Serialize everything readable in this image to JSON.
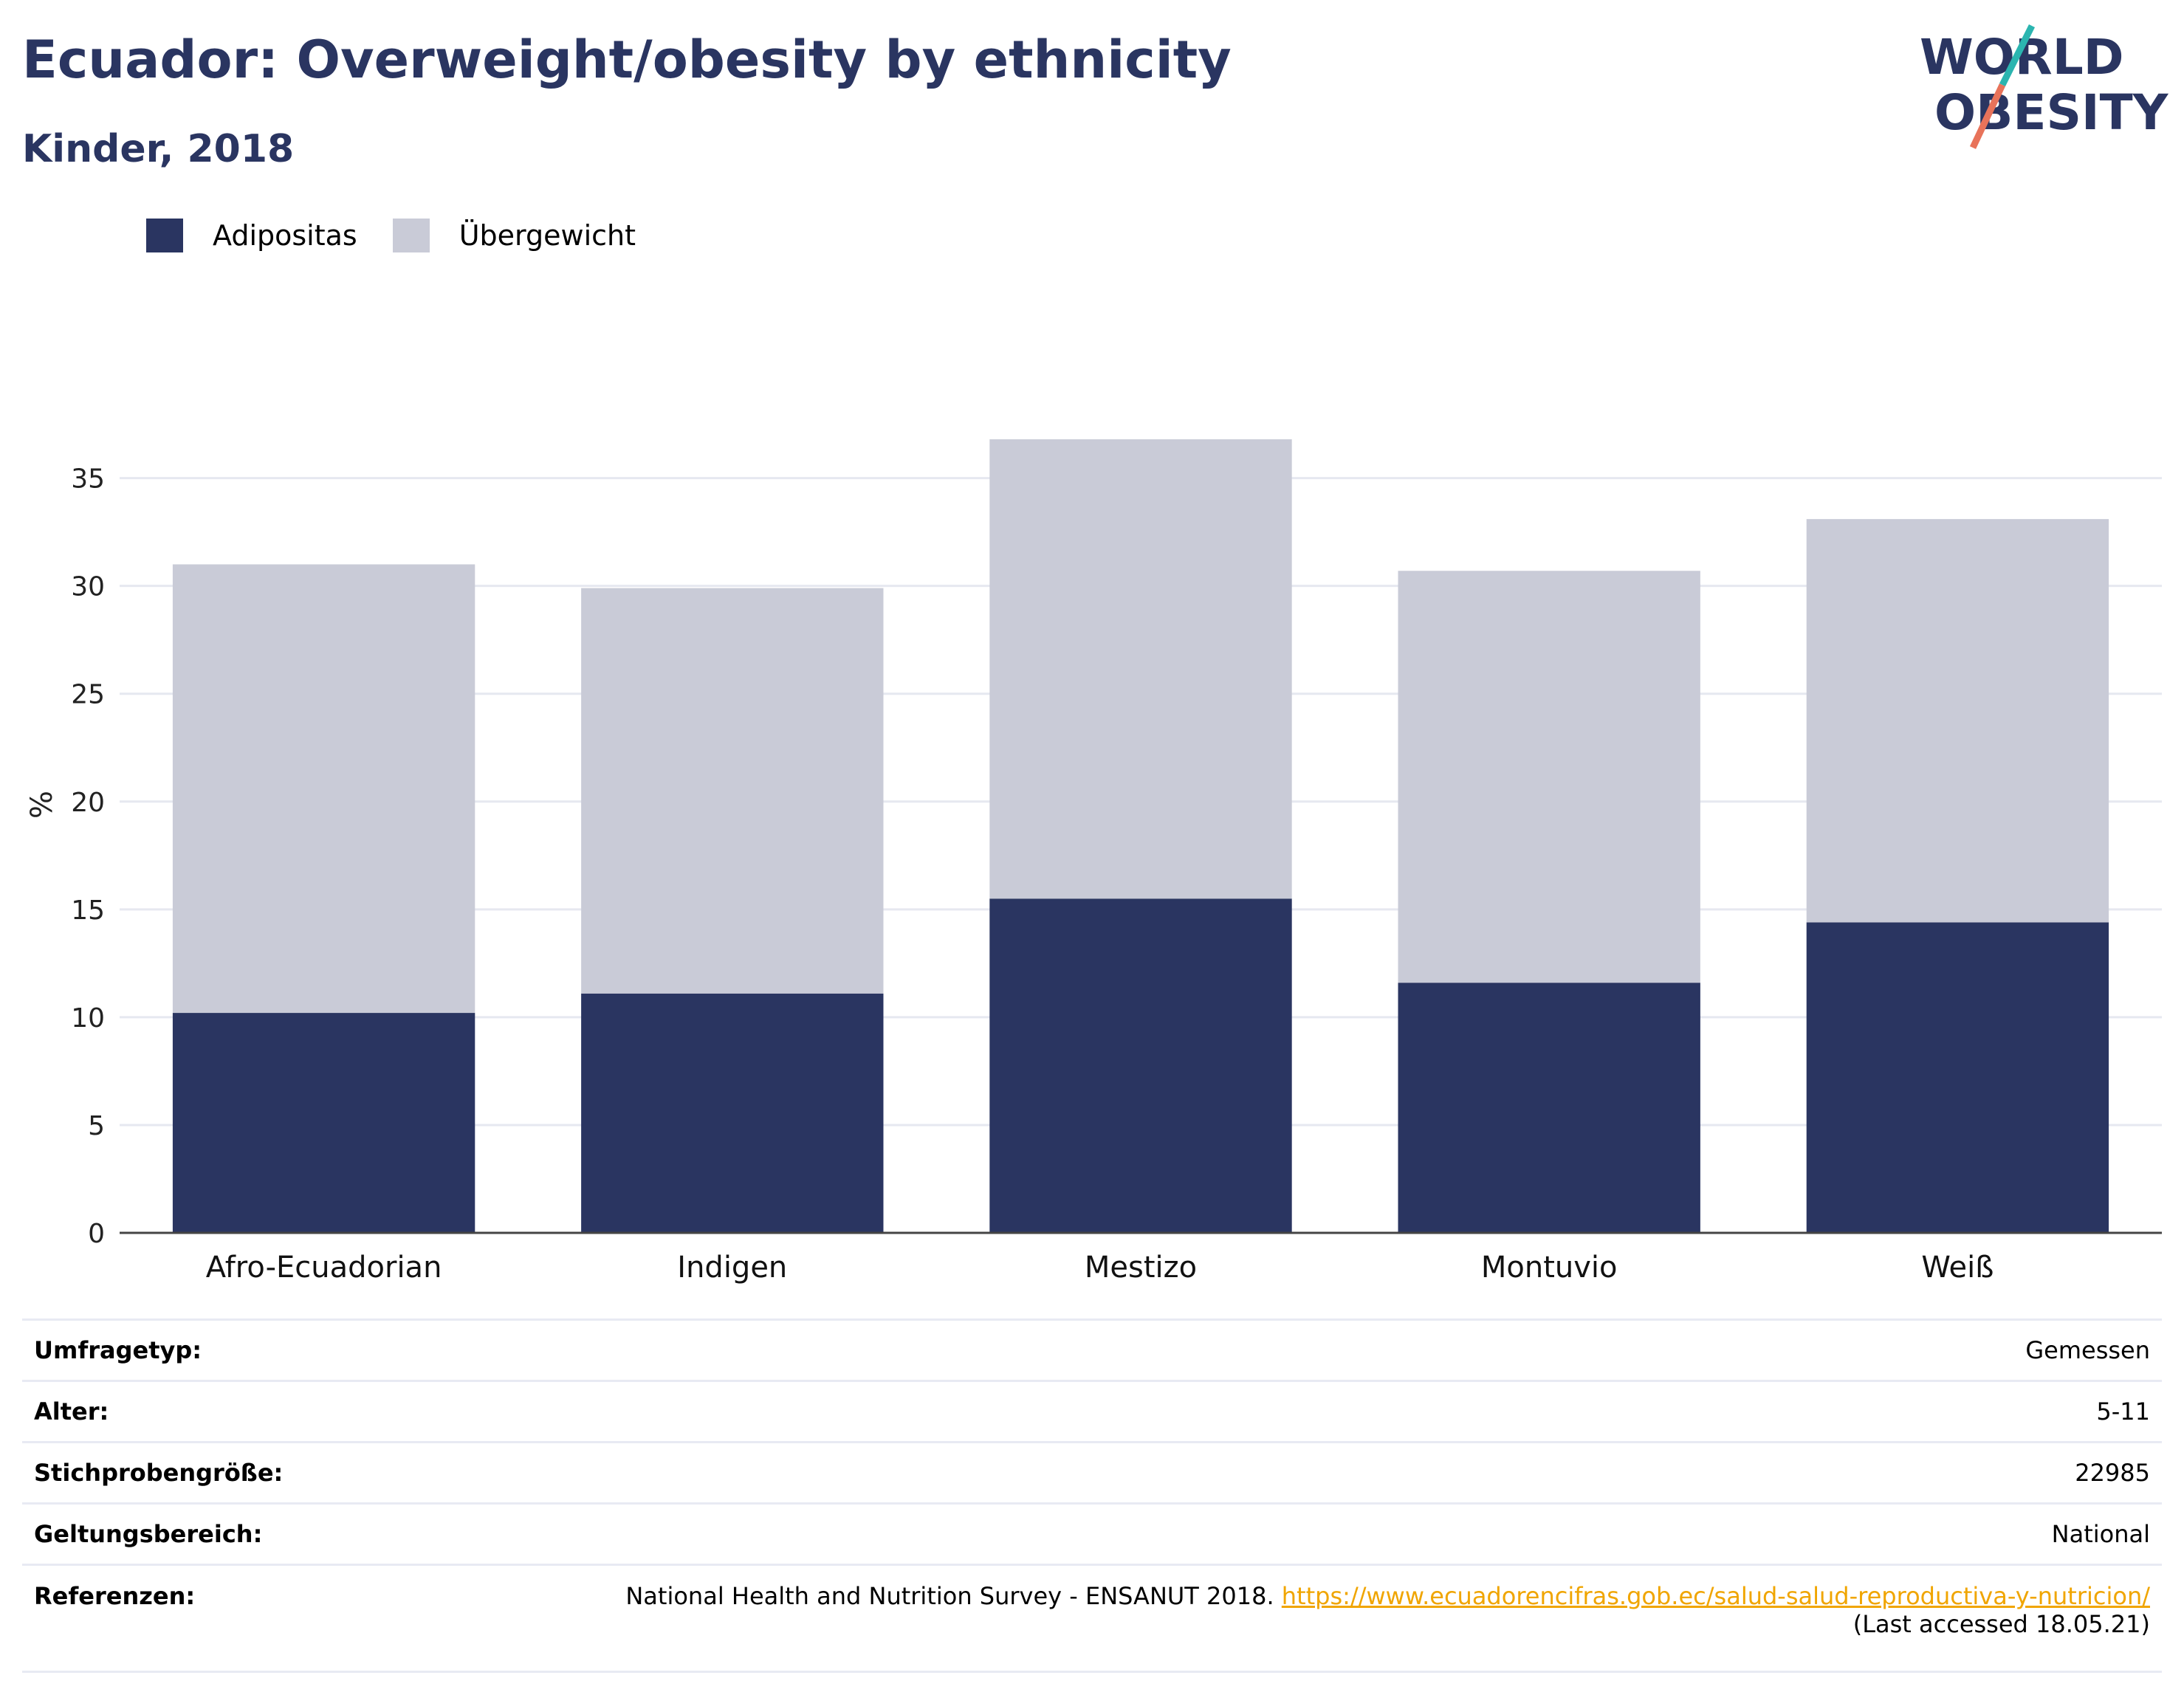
{
  "header": {
    "title": "Ecuador: Overweight/obesity by ethnicity",
    "subtitle": "Kinder, 2018"
  },
  "logo": {
    "line1": "WORLD",
    "line2": "OBESITY",
    "colors": {
      "text": "#2a3561",
      "slash_top": "#2bb5b0",
      "slash_bottom": "#e8735a"
    }
  },
  "colors": {
    "adipositas": "#2a3561",
    "uebergewicht": "#c9cbd7",
    "grid": "#e6e8f0",
    "axis": "#444444"
  },
  "chart_data": {
    "type": "bar",
    "stacked": true,
    "categories": [
      "Afro-Ecuadorian",
      "Indigen",
      "Mestizo",
      "Montuvio",
      "Weiß"
    ],
    "series": [
      {
        "name": "Adipositas",
        "values": [
          10.2,
          11.1,
          15.5,
          11.6,
          14.4
        ]
      },
      {
        "name": "Übergewicht",
        "values": [
          20.8,
          18.8,
          21.3,
          19.1,
          18.7
        ]
      }
    ],
    "ylabel": "%",
    "xlabel": "",
    "ylim": [
      0,
      38
    ],
    "yticks": [
      0,
      5,
      10,
      15,
      20,
      25,
      30,
      35
    ],
    "grid": true,
    "legend_position": "top-left"
  },
  "meta": {
    "rows": [
      {
        "key": "Umfragetyp:",
        "value": "Gemessen"
      },
      {
        "key": "Alter:",
        "value": "5-11"
      },
      {
        "key": "Stichprobengröße:",
        "value": "22985"
      },
      {
        "key": "Geltungsbereich:",
        "value": "National"
      }
    ],
    "references": {
      "key": "Referenzen:",
      "text": "National Health and Nutrition Survey - ENSANUT 2018.",
      "link": "https://www.ecuadorencifras.gob.ec/salud-salud-reproductiva-y-nutricion/",
      "accessed": "(Last accessed 18.05.21)"
    }
  }
}
